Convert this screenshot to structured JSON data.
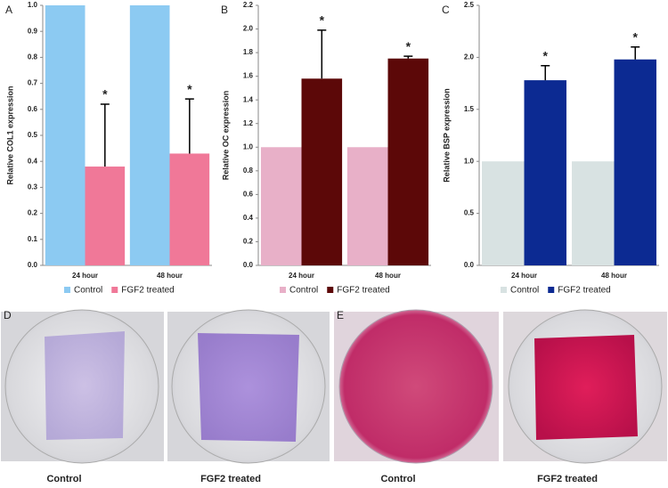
{
  "chart_data": [
    {
      "type": "bar",
      "panel": "A",
      "ylabel": "Relative COL1 expression",
      "categories": [
        "24 hour",
        "48 hour"
      ],
      "series": [
        {
          "name": "Control",
          "color": "#8ccaf2",
          "values": [
            1,
            1
          ]
        },
        {
          "name": "FGF2 treated",
          "color": "#f07898",
          "values": [
            0.38,
            0.43
          ],
          "errors": [
            0.24,
            0.21
          ]
        }
      ],
      "annotations": [
        "*",
        "*"
      ],
      "ylim": [
        0,
        1
      ],
      "yticks": [
        {
          "value": 0,
          "label": "0.0"
        },
        0.1,
        0.2,
        0.3,
        0.4,
        0.5,
        0.6,
        0.7,
        0.8,
        0.9,
        {
          "value": 1,
          "label": "1.0"
        }
      ]
    },
    {
      "type": "bar",
      "panel": "B",
      "ylabel": "Relative OC expression",
      "categories": [
        "24 hour",
        "48 hour"
      ],
      "series": [
        {
          "name": "Control",
          "color": "#e8b0c8",
          "values": [
            1,
            1
          ]
        },
        {
          "name": "FGF2 treated",
          "color": "#5c0808",
          "values": [
            1.58,
            1.75
          ],
          "errors": [
            0.41,
            0.02
          ]
        }
      ],
      "annotations": [
        "*",
        "*"
      ],
      "ylim": [
        0,
        2.2
      ],
      "yticks": [
        {
          "value": 0,
          "label": "0.0"
        },
        0.2,
        0.4,
        0.6,
        0.8,
        {
          "value": 1,
          "label": "1.0"
        },
        1.2,
        1.4,
        1.6,
        1.8,
        {
          "value": 2,
          "label": "2.0"
        },
        2.2
      ]
    },
    {
      "type": "bar",
      "panel": "C",
      "ylabel": "Relative BSP expression",
      "categories": [
        "24 hour",
        "48 hour"
      ],
      "series": [
        {
          "name": "Control",
          "color": "#d8e2e2",
          "values": [
            1,
            1
          ]
        },
        {
          "name": "FGF2 treated",
          "color": "#0c2a92",
          "values": [
            1.78,
            1.98
          ],
          "errors": [
            0.14,
            0.12
          ]
        }
      ],
      "annotations": [
        "*",
        "*"
      ],
      "ylim": [
        0,
        2.5
      ],
      "yticks": [
        {
          "value": 0,
          "label": "0.0"
        },
        0.5,
        {
          "value": 1,
          "label": "1.0"
        },
        1.5,
        {
          "value": 2,
          "label": "2.0"
        },
        2.5
      ]
    }
  ],
  "photos": [
    {
      "panel": "D",
      "labels": [
        "Control",
        "FGF2 treated"
      ]
    },
    {
      "panel": "E",
      "labels": [
        "Control",
        "FGF2 treated"
      ]
    }
  ]
}
